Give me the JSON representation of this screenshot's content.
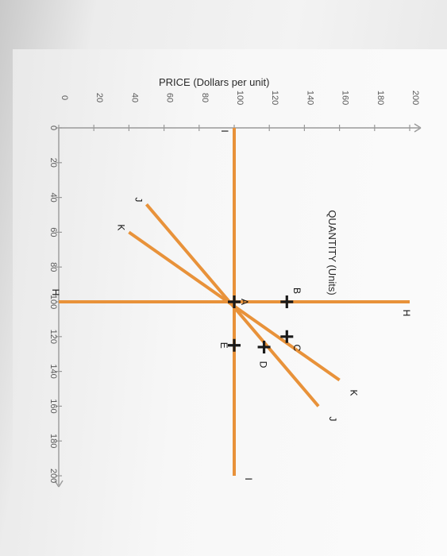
{
  "chart_data": {
    "type": "line",
    "title": "",
    "ylabel": "PRICE (Dollars per unit)",
    "xlabel": "QUANTITY (Units)",
    "xlim": [
      0,
      200
    ],
    "ylim": [
      0,
      200
    ],
    "x_ticks": [
      0,
      20,
      40,
      60,
      80,
      100,
      120,
      140,
      160,
      180,
      200
    ],
    "y_ticks": [
      0,
      20,
      40,
      60,
      80,
      100,
      120,
      140,
      160,
      180,
      200
    ],
    "line_color": "#e8923a",
    "series": [
      {
        "name": "H",
        "x": [
          100,
          100
        ],
        "y": [
          0,
          200
        ]
      },
      {
        "name": "I",
        "x": [
          0,
          200
        ],
        "y": [
          100,
          100
        ]
      },
      {
        "name": "J",
        "x": [
          44,
          160
        ],
        "y": [
          50,
          148
        ]
      },
      {
        "name": "K",
        "x": [
          60,
          145
        ],
        "y": [
          40,
          160
        ]
      }
    ],
    "series_labels": [
      {
        "name": "H",
        "label_low": "H",
        "label_high": "H"
      },
      {
        "name": "I",
        "label_low": "I",
        "label_high": "I"
      },
      {
        "name": "J",
        "label_low": "J",
        "label_high": "J"
      },
      {
        "name": "K",
        "label_low": "K",
        "label_high": "K"
      }
    ],
    "points": [
      {
        "label": "A",
        "x": 100,
        "y": 100
      },
      {
        "label": "B",
        "x": 100,
        "y": 130
      },
      {
        "label": "C",
        "x": 120,
        "y": 130
      },
      {
        "label": "D",
        "x": 126,
        "y": 117
      },
      {
        "label": "E",
        "x": 125,
        "y": 100
      }
    ]
  }
}
